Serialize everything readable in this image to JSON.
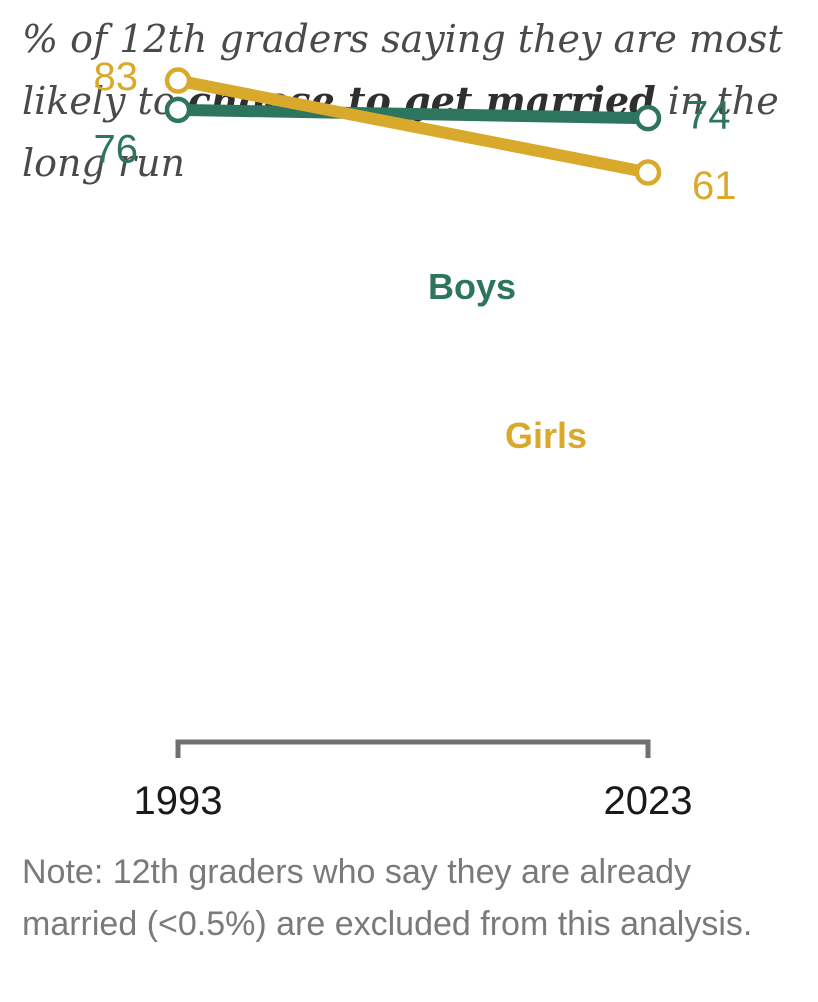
{
  "title": {
    "part1": "% of 12th graders saying they are most likely to ",
    "bold": "choose to get married",
    "part2": " in the long run"
  },
  "note": "Note: 12th graders who say they are already married (<0.5%) are excluded from this analysis.",
  "colors": {
    "boys": "#2e7560",
    "girls": "#d9a92b",
    "axis": "#6f6f6f"
  },
  "chart_data": {
    "type": "line",
    "title": "% of 12th graders saying they are most likely to choose to get married in the long run",
    "x": [
      "1993",
      "2023"
    ],
    "ylim": [
      0,
      100
    ],
    "series": [
      {
        "name": "Boys",
        "values": [
          76,
          74
        ]
      },
      {
        "name": "Girls",
        "values": [
          83,
          61
        ]
      }
    ],
    "xlabel": "",
    "ylabel": "",
    "grid": false,
    "legend": "inline labels"
  }
}
